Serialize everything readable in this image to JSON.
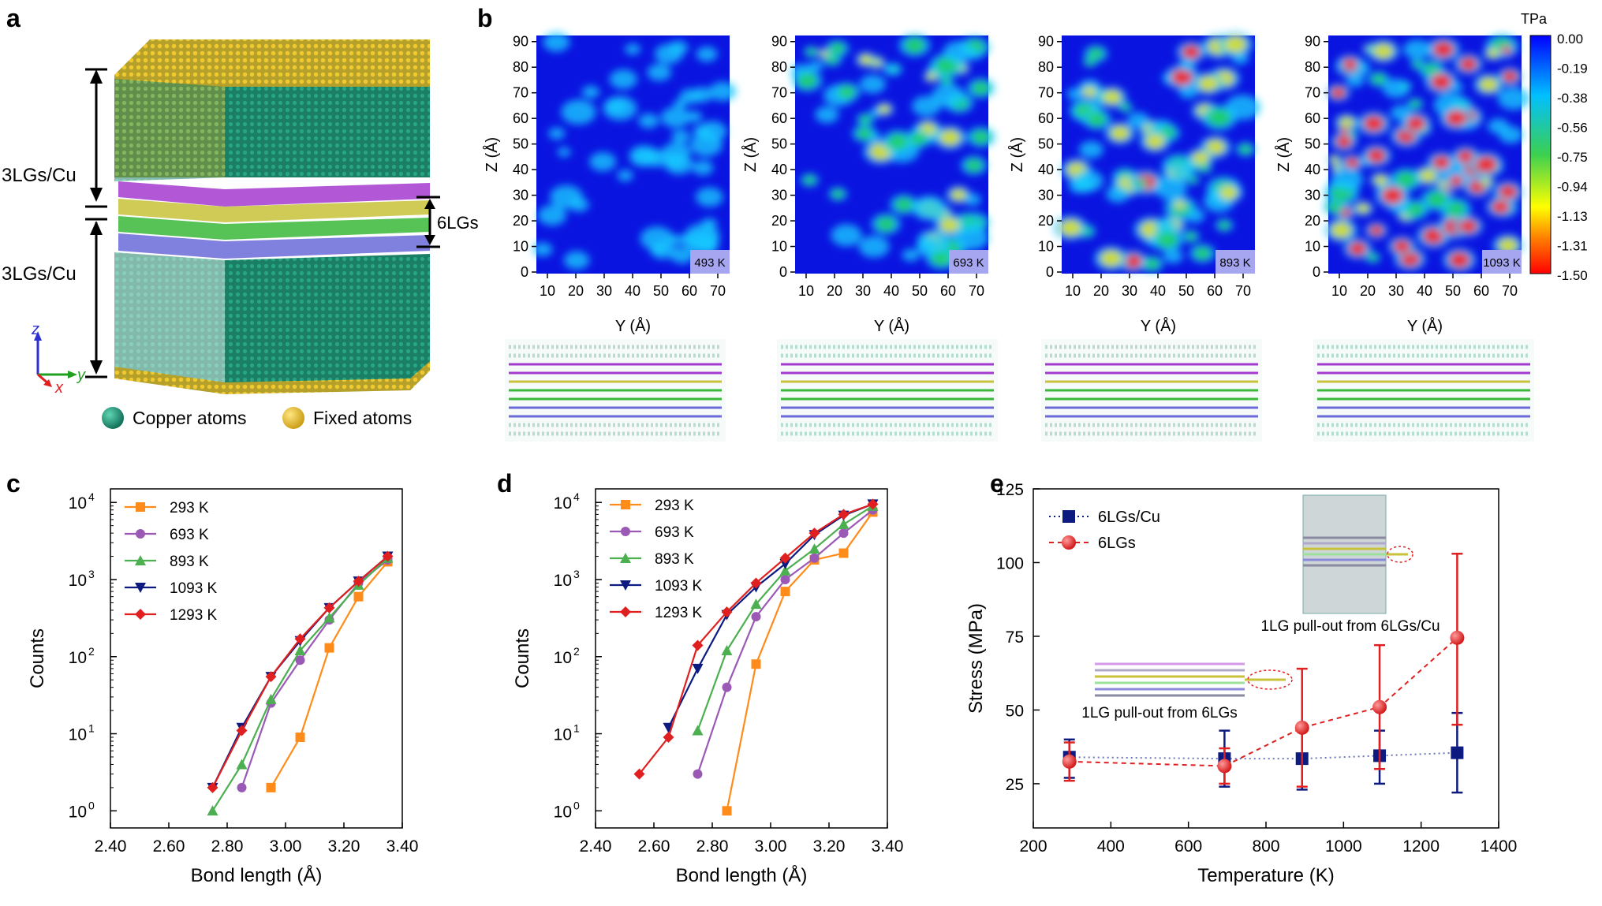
{
  "panel_labels": {
    "a": "a",
    "b": "b",
    "c": "c",
    "d": "d",
    "e": "e"
  },
  "panel_a": {
    "top_region": "3LGs/Cu",
    "bottom_region": "3LGs/Cu",
    "middle_region": "6LGs",
    "axis_z": "z",
    "axis_y": "y",
    "axis_x": "x",
    "legend_copper": "Copper atoms",
    "legend_fixed": "Fixed atoms",
    "colors": {
      "copper": "#1f8a6e",
      "fixed": "#e8b820",
      "layer1": "#a43bd0",
      "layer2": "#c8c23a",
      "layer3": "#3ab83a",
      "layer4": "#6a6ad8"
    }
  },
  "panel_b": {
    "colorbar": {
      "unit": "TPa",
      "ticks": [
        "0.00",
        "-0.19",
        "-0.38",
        "-0.56",
        "-0.75",
        "-0.94",
        "-1.13",
        "-1.31",
        "-1.50"
      ]
    },
    "maps": [
      {
        "temperature": "493 K",
        "xlabel": "Y (Å)",
        "ylabel": "Z (Å)"
      },
      {
        "temperature": "693 K",
        "xlabel": "Y (Å)",
        "ylabel": "Z (Å)"
      },
      {
        "temperature": "893 K",
        "xlabel": "Y (Å)",
        "ylabel": "Z (Å)"
      },
      {
        "temperature": "1093 K",
        "xlabel": "Y (Å)",
        "ylabel": "Z (Å)"
      }
    ],
    "x_ticks": [
      "10",
      "20",
      "30",
      "40",
      "50",
      "60",
      "70"
    ],
    "y_ticks": [
      "0",
      "10",
      "20",
      "30",
      "40",
      "50",
      "60",
      "70",
      "80",
      "90"
    ]
  },
  "chart_data": [
    {
      "panel": "c",
      "type": "line",
      "xlabel": "Bond length (Å)",
      "ylabel": "Counts",
      "yscale": "log",
      "xlim": [
        2.4,
        3.4
      ],
      "ylim": [
        0.6,
        15000
      ],
      "x_ticks": [
        "2.40",
        "2.60",
        "2.80",
        "3.00",
        "3.20",
        "3.40"
      ],
      "y_ticks": [
        "10",
        "10",
        "10",
        "10",
        "10"
      ],
      "y_exponents": [
        "0",
        "1",
        "2",
        "3",
        "4"
      ],
      "series": [
        {
          "name": "293 K",
          "color": "#ff8c1a",
          "marker": "square",
          "x": [
            2.95,
            3.05,
            3.15,
            3.25,
            3.35
          ],
          "values": [
            2,
            9,
            130,
            600,
            1700
          ]
        },
        {
          "name": "693 K",
          "color": "#9b59b6",
          "marker": "circle",
          "x": [
            2.85,
            2.95,
            3.05,
            3.15,
            3.25,
            3.35
          ],
          "values": [
            2,
            25,
            90,
            300,
            900,
            1800
          ]
        },
        {
          "name": "893 K",
          "color": "#4caf50",
          "marker": "triangle-up",
          "x": [
            2.75,
            2.85,
            2.95,
            3.05,
            3.15,
            3.25,
            3.35
          ],
          "values": [
            1,
            4,
            28,
            120,
            320,
            850,
            1900
          ]
        },
        {
          "name": "1093 K",
          "color": "#0d1a80",
          "marker": "triangle-down",
          "x": [
            2.75,
            2.85,
            2.95,
            3.05,
            3.15,
            3.25,
            3.35
          ],
          "values": [
            2,
            12,
            55,
            160,
            430,
            950,
            2000
          ]
        },
        {
          "name": "1293 K",
          "color": "#e02020",
          "marker": "diamond",
          "x": [
            2.75,
            2.85,
            2.95,
            3.05,
            3.15,
            3.25,
            3.35
          ],
          "values": [
            2,
            11,
            55,
            170,
            430,
            950,
            2000
          ]
        }
      ]
    },
    {
      "panel": "d",
      "type": "line",
      "xlabel": "Bond length (Å)",
      "ylabel": "Counts",
      "yscale": "log",
      "xlim": [
        2.4,
        3.4
      ],
      "ylim": [
        0.6,
        15000
      ],
      "x_ticks": [
        "2.40",
        "2.60",
        "2.80",
        "3.00",
        "3.20",
        "3.40"
      ],
      "y_ticks": [
        "10",
        "10",
        "10",
        "10",
        "10"
      ],
      "y_exponents": [
        "0",
        "1",
        "2",
        "3",
        "4"
      ],
      "series": [
        {
          "name": "293 K",
          "color": "#ff8c1a",
          "marker": "square",
          "x": [
            2.85,
            2.95,
            3.05,
            3.15,
            3.25,
            3.35
          ],
          "values": [
            1,
            80,
            700,
            1800,
            2200,
            7500
          ]
        },
        {
          "name": "693 K",
          "color": "#9b59b6",
          "marker": "circle",
          "x": [
            2.75,
            2.85,
            2.95,
            3.05,
            3.15,
            3.25,
            3.35
          ],
          "values": [
            3,
            40,
            330,
            1000,
            1900,
            4000,
            8000
          ]
        },
        {
          "name": "893 K",
          "color": "#4caf50",
          "marker": "triangle-up",
          "x": [
            2.75,
            2.85,
            2.95,
            3.05,
            3.15,
            3.25,
            3.35
          ],
          "values": [
            11,
            120,
            480,
            1300,
            2500,
            5200,
            9000
          ]
        },
        {
          "name": "1093 K",
          "color": "#0d1a80",
          "marker": "triangle-down",
          "x": [
            2.65,
            2.75,
            2.85,
            2.95,
            3.05,
            3.15,
            3.25,
            3.35
          ],
          "values": [
            12,
            70,
            350,
            800,
            1600,
            3800,
            6800,
            9500
          ]
        },
        {
          "name": "1293 K",
          "color": "#e02020",
          "marker": "diamond",
          "x": [
            2.55,
            2.65,
            2.75,
            2.85,
            2.95,
            3.05,
            3.15,
            3.25,
            3.35
          ],
          "values": [
            3,
            9,
            140,
            380,
            900,
            1900,
            4000,
            7000,
            9500
          ]
        }
      ]
    },
    {
      "panel": "e",
      "type": "scatter",
      "xlabel": "Temperature (K)",
      "ylabel": "Stress (MPa)",
      "xlim": [
        200,
        1400
      ],
      "ylim": [
        10,
        125
      ],
      "x_ticks": [
        "200",
        "400",
        "600",
        "800",
        "1000",
        "1200",
        "1400"
      ],
      "y_ticks": [
        "25",
        "50",
        "75",
        "100",
        "125"
      ],
      "annotations": [
        "1LG pull-out from 6LGs/Cu",
        "1LG pull-out from 6LGs"
      ],
      "series": [
        {
          "name": "6LGs/Cu",
          "color": "#0d1a80",
          "marker": "square",
          "line": "dotted",
          "x": [
            293,
            693,
            893,
            1093,
            1293
          ],
          "values": [
            34,
            33.5,
            33.5,
            34.5,
            35.5
          ],
          "error_low": [
            27,
            24,
            23,
            25,
            22
          ],
          "error_high": [
            40,
            43,
            44,
            43,
            49
          ]
        },
        {
          "name": "6LGs",
          "color": "#e02020",
          "marker": "circle",
          "line": "dashed",
          "x": [
            293,
            693,
            893,
            1093,
            1293
          ],
          "values": [
            32.5,
            31,
            44,
            51,
            74.5
          ],
          "error_low": [
            26,
            25,
            24,
            30,
            45
          ],
          "error_high": [
            39,
            37,
            64,
            72,
            103
          ]
        }
      ]
    }
  ]
}
